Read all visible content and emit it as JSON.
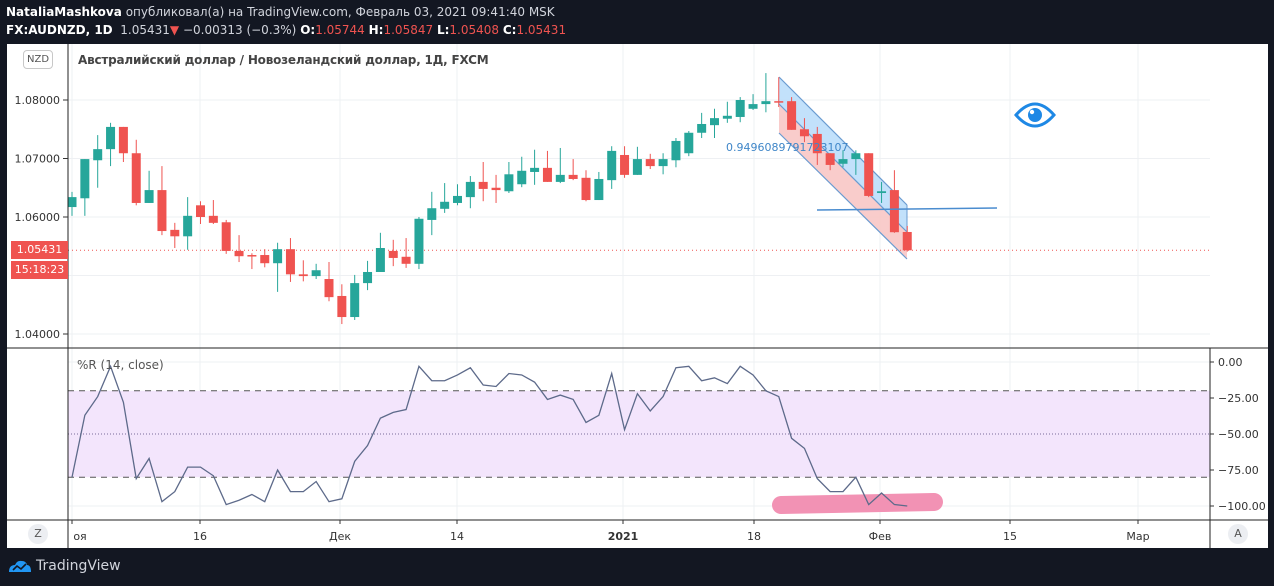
{
  "header": {
    "author": "NataliaMashkova",
    "published": "опубликовал(а) на TradingView.com, Февраль 03, 2021 09:41:40 MSK",
    "symbol": "FX:AUDNZD, 1D",
    "last": "1.05431",
    "change": "−0.00313 (−0.3%)",
    "o_label": "O:",
    "o": "1.05744",
    "h_label": "H:",
    "h": "1.05847",
    "l_label": "L:",
    "l": "1.05408",
    "c_label": "C:",
    "c": "1.05431"
  },
  "chart": {
    "currency_button": "NZD",
    "title": "Австралийский доллар / Новозеландский доллар, 1Д, FXCM",
    "price_ticks": [
      "1.08000",
      "1.07000",
      "1.06000",
      "1.04000"
    ],
    "current_price": "1.05431",
    "countdown": "15:18:23",
    "channel_label": "0.9496089791723107",
    "indicator_label": "%R (14, close)",
    "indicator_ticks": [
      "0.00",
      "−25.00",
      "−50.00",
      "−75.00",
      "−100.00"
    ],
    "time_labels": [
      "оя",
      "16",
      "Дек",
      "14",
      "2021",
      "18",
      "Фев",
      "15",
      "Мар"
    ],
    "z_button": "Z",
    "a_button": "A",
    "colors": {
      "up": "#26a69a",
      "down": "#ef5350",
      "channel_up": "#bbdefb",
      "channel_down": "#f8c6c5",
      "line": "#5d6a8a",
      "highlight": "#f292b4",
      "band": "#f3e5fc"
    }
  },
  "footer": {
    "logo_text": "TradingView"
  },
  "chart_data": {
    "type": "candlestick",
    "symbol": "AUDNZD",
    "ylim": [
      1.035,
      1.088
    ],
    "candles": [
      [
        1.0617,
        1.0643,
        1.0602,
        1.0634
      ],
      [
        1.0632,
        1.0699,
        1.0602,
        1.0699
      ],
      [
        1.0697,
        1.074,
        1.065,
        1.0716
      ],
      [
        1.0716,
        1.0761,
        1.0687,
        1.0754
      ],
      [
        1.0754,
        1.0754,
        1.0694,
        1.0709
      ],
      [
        1.0709,
        1.0732,
        1.062,
        1.0624
      ],
      [
        1.0624,
        1.0679,
        1.0624,
        1.0646
      ],
      [
        1.0646,
        1.0687,
        1.0569,
        1.0576
      ],
      [
        1.0578,
        1.059,
        1.0547,
        1.0567
      ],
      [
        1.0567,
        1.0634,
        1.0544,
        1.0602
      ],
      [
        1.062,
        1.0627,
        1.0588,
        1.06
      ],
      [
        1.0602,
        1.0629,
        1.0588,
        1.059
      ],
      [
        1.0591,
        1.0595,
        1.0537,
        1.0542
      ],
      [
        1.0542,
        1.0569,
        1.0523,
        1.0533
      ],
      [
        1.0535,
        1.0538,
        1.0511,
        1.0533
      ],
      [
        1.0535,
        1.0545,
        1.0514,
        1.0521
      ],
      [
        1.0521,
        1.0556,
        1.0472,
        1.0545
      ],
      [
        1.0545,
        1.0564,
        1.0489,
        1.0502
      ],
      [
        1.0502,
        1.0526,
        1.049,
        1.0499
      ],
      [
        1.0499,
        1.052,
        1.0494,
        1.0509
      ],
      [
        1.0494,
        1.0523,
        1.0456,
        1.0463
      ],
      [
        1.0465,
        1.0485,
        1.0417,
        1.0429
      ],
      [
        1.0429,
        1.0501,
        1.0424,
        1.0487
      ],
      [
        1.0487,
        1.0525,
        1.0475,
        1.0506
      ],
      [
        1.0506,
        1.0573,
        1.0506,
        1.0547
      ],
      [
        1.0542,
        1.0561,
        1.0516,
        1.053
      ],
      [
        1.0532,
        1.0564,
        1.0513,
        1.052
      ],
      [
        1.052,
        1.06,
        1.0511,
        1.0597
      ],
      [
        1.0595,
        1.0643,
        1.0569,
        1.0615
      ],
      [
        1.0614,
        1.0658,
        1.0607,
        1.0626
      ],
      [
        1.0624,
        1.0656,
        1.062,
        1.0636
      ],
      [
        1.0634,
        1.067,
        1.0615,
        1.066
      ],
      [
        1.066,
        1.0694,
        1.0627,
        1.0648
      ],
      [
        1.065,
        1.0672,
        1.0624,
        1.0646
      ],
      [
        1.0644,
        1.0694,
        1.0641,
        1.0673
      ],
      [
        1.0656,
        1.0703,
        1.0651,
        1.0679
      ],
      [
        1.0677,
        1.0715,
        1.0655,
        1.0684
      ],
      [
        1.0684,
        1.0713,
        1.066,
        1.066
      ],
      [
        1.066,
        1.0718,
        1.0658,
        1.0672
      ],
      [
        1.0672,
        1.0699,
        1.0663,
        1.0665
      ],
      [
        1.0667,
        1.068,
        1.0627,
        1.0629
      ],
      [
        1.0629,
        1.0677,
        1.0629,
        1.0665
      ],
      [
        1.0663,
        1.0721,
        1.0648,
        1.0713
      ],
      [
        1.0706,
        1.0721,
        1.0667,
        1.0672
      ],
      [
        1.0672,
        1.072,
        1.0672,
        1.0699
      ],
      [
        1.0699,
        1.0708,
        1.0682,
        1.0687
      ],
      [
        1.0687,
        1.0709,
        1.0673,
        1.0699
      ],
      [
        1.0697,
        1.0735,
        1.0685,
        1.073
      ],
      [
        1.0709,
        1.0747,
        1.0704,
        1.0744
      ],
      [
        1.0744,
        1.0778,
        1.0735,
        1.0759
      ],
      [
        1.0757,
        1.0785,
        1.0735,
        1.0769
      ],
      [
        1.0768,
        1.0797,
        1.0761,
        1.0773
      ],
      [
        1.0771,
        1.0805,
        1.0762,
        1.08
      ],
      [
        1.0785,
        1.081,
        1.0783,
        1.0793
      ],
      [
        1.0793,
        1.0846,
        1.0779,
        1.0798
      ],
      [
        1.0798,
        1.0839,
        1.0788,
        1.0797
      ],
      [
        1.0798,
        1.0805,
        1.0749,
        1.0749
      ],
      [
        1.075,
        1.0769,
        1.0728,
        1.0738
      ],
      [
        1.0742,
        1.0754,
        1.0689,
        1.0709
      ],
      [
        1.0709,
        1.0709,
        1.068,
        1.0689
      ],
      [
        1.0691,
        1.0714,
        1.0685,
        1.0699
      ],
      [
        1.0699,
        1.0714,
        1.0672,
        1.0709
      ],
      [
        1.0709,
        1.0709,
        1.0634,
        1.0636
      ],
      [
        1.0641,
        1.066,
        1.0624,
        1.0644
      ],
      [
        1.0646,
        1.068,
        1.0573,
        1.0574
      ],
      [
        1.05744,
        1.05847,
        1.05408,
        1.05431
      ]
    ],
    "williams_r": {
      "name": "%R (14, close)",
      "ylim": [
        -100,
        0
      ],
      "upper_band": -20,
      "middle": -50,
      "lower_band": -80,
      "values": [
        -80,
        -37,
        -24,
        -3,
        -28,
        -81,
        -67,
        -97,
        -90,
        -73,
        -73,
        -79,
        -99,
        -96,
        -92,
        -97,
        -75,
        -90,
        -90,
        -83,
        -97,
        -95,
        -69,
        -58,
        -39,
        -35,
        -33,
        -3,
        -13,
        -13,
        -9,
        -4,
        -16,
        -17,
        -8,
        -9,
        -14,
        -26,
        -23,
        -26,
        -42,
        -37,
        -8,
        -47,
        -22,
        -34,
        -24,
        -4,
        -3,
        -13,
        -11,
        -15,
        -3,
        -9,
        -20,
        -24,
        -53,
        -60,
        -81,
        -90,
        -90,
        -80,
        -99,
        -91,
        -99,
        -100
      ]
    }
  }
}
